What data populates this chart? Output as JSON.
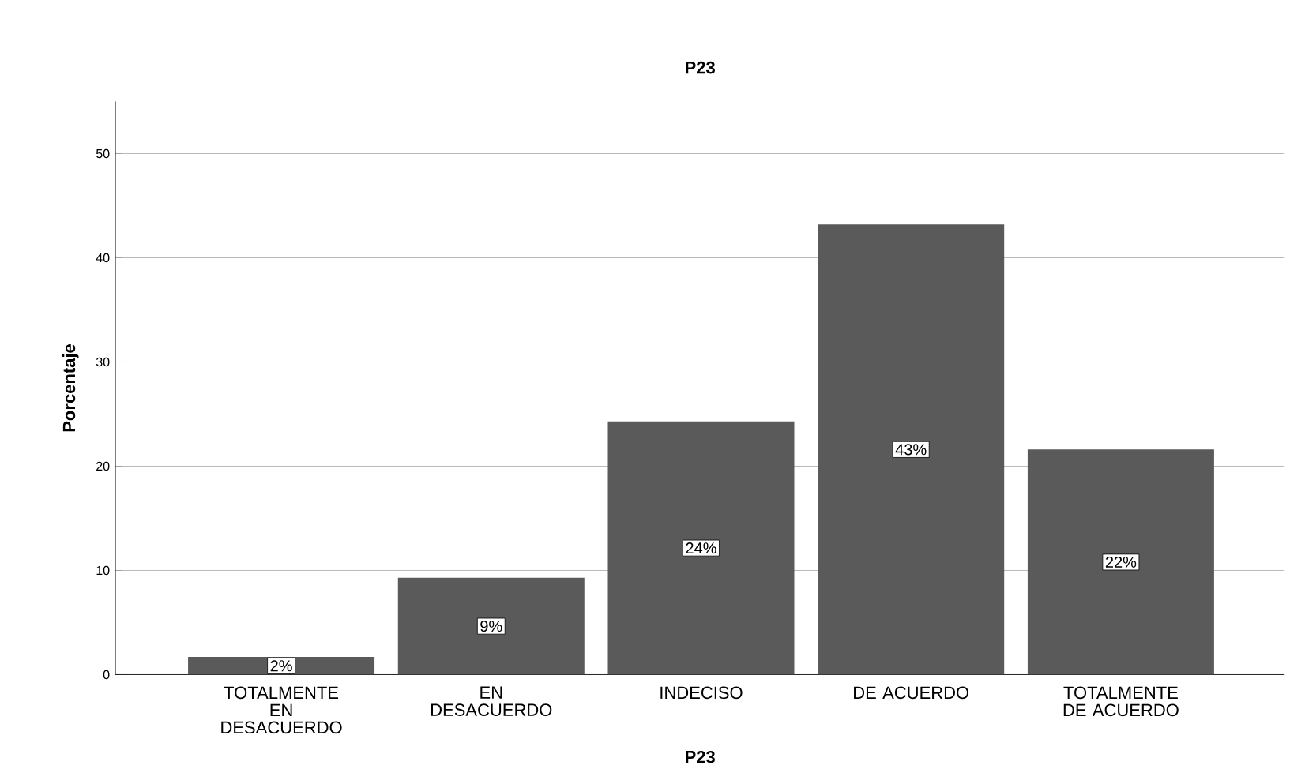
{
  "chart_data": {
    "type": "bar",
    "title": "P23",
    "xlabel": "P23",
    "ylabel": "Porcentaje",
    "categories": [
      "TOTALMENTE EN DESACUERDO",
      "EN DESACUERDO",
      "INDECISO",
      "DE ACUERDO",
      "TOTALMENTE DE ACUERDO"
    ],
    "values": [
      1.7,
      9.3,
      24.3,
      43.2,
      21.6
    ],
    "value_labels": [
      "2%",
      "9%",
      "24%",
      "43%",
      "22%"
    ],
    "color": "#5a5a5a",
    "ylim": [
      0,
      55
    ],
    "yticks": [
      0,
      10,
      20,
      30,
      40,
      50
    ],
    "grid": "y"
  }
}
